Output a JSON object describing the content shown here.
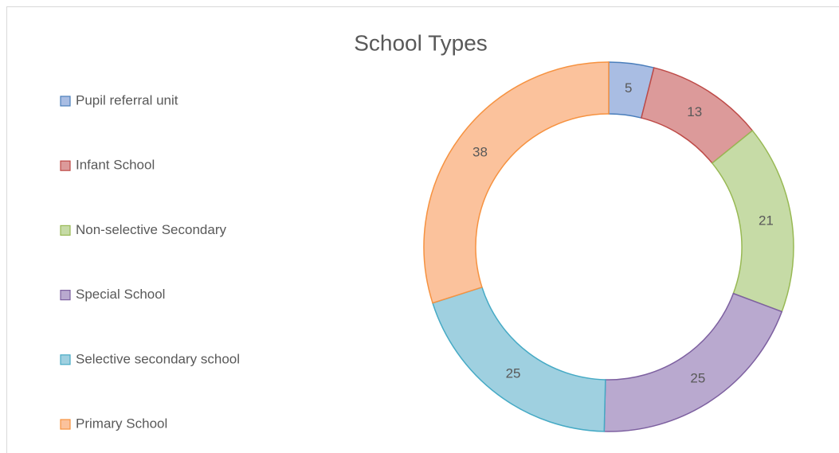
{
  "chart_data": {
    "type": "doughnut",
    "title": "School Types",
    "categories": [
      "Pupil referral unit",
      "Infant School",
      "Non-selective Secondary",
      "Special School",
      "Selective secondary school",
      "Primary School"
    ],
    "values": [
      5,
      13,
      21,
      25,
      25,
      38
    ],
    "colors": [
      "#a9bde3",
      "#dc9a9a",
      "#c6dba6",
      "#b9a9cf",
      "#9fd0e0",
      "#fbc29c"
    ],
    "stroke_colors": [
      "#4a7ebb",
      "#be4b48",
      "#98b954",
      "#7d60a0",
      "#46aac5",
      "#f69240"
    ],
    "legend": "left"
  }
}
